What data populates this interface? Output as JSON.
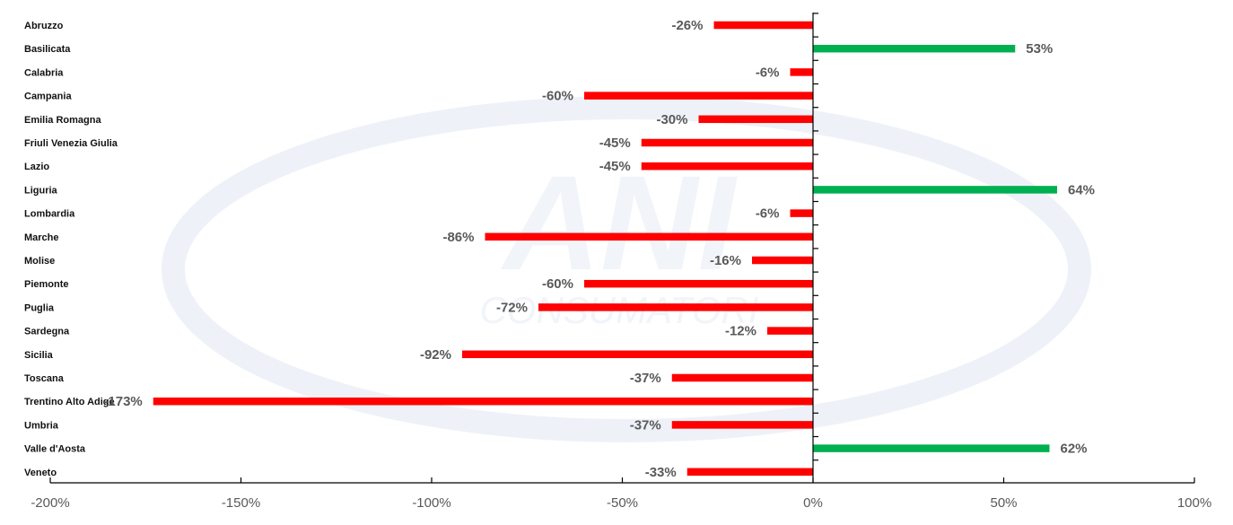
{
  "chart_data": {
    "type": "bar",
    "orientation": "horizontal",
    "categories": [
      "Abruzzo",
      "Basilicata",
      "Calabria",
      "Campania",
      "Emilia Romagna",
      "Friuli Venezia Giulia",
      "Lazio",
      "Liguria",
      "Lombardia",
      "Marche",
      "Molise",
      "Piemonte",
      "Puglia",
      "Sardegna",
      "Sicilia",
      "Toscana",
      "Trentino Alto Adige",
      "Umbria",
      "Valle d'Aosta",
      "Veneto"
    ],
    "values": [
      -26,
      53,
      -6,
      -60,
      -30,
      -45,
      -45,
      64,
      -6,
      -86,
      -16,
      -60,
      -72,
      -12,
      -92,
      -37,
      -173,
      -37,
      62,
      -33
    ],
    "value_labels": [
      "-26%",
      "53%",
      "-6%",
      "-60%",
      "-30%",
      "-45%",
      "-45%",
      "64%",
      "-6%",
      "-86%",
      "-16%",
      "-60%",
      "-72%",
      "-12%",
      "-92%",
      "-37%",
      "-173%",
      "-37%",
      "62%",
      "-33%"
    ],
    "xlim": [
      -200,
      100
    ],
    "x_ticks": [
      -200,
      -150,
      -100,
      -50,
      0,
      50,
      100
    ],
    "x_tick_labels": [
      "-200%",
      "-150%",
      "-100%",
      "-50%",
      "0%",
      "50%",
      "100%"
    ],
    "positive_color": "#00b050",
    "negative_color": "#ff0000",
    "title": "",
    "xlabel": "",
    "ylabel": "",
    "grid": false,
    "legend": "none"
  },
  "watermark": {
    "main_text": "ANI",
    "sub_text": "CONSUMATORI"
  }
}
